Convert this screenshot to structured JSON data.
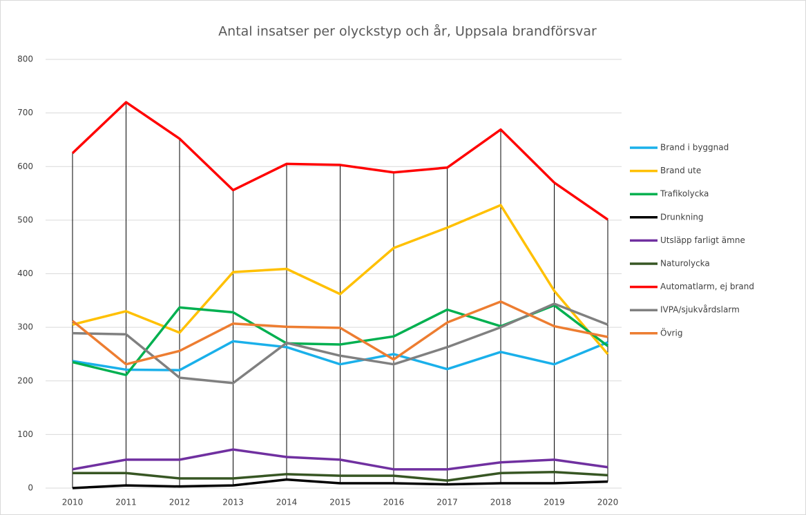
{
  "chart_data": {
    "type": "line",
    "title": "Antal insatser per olyckstyp och år, Uppsala brandförsvar",
    "categories": [
      "2010",
      "2011",
      "2012",
      "2013",
      "2014",
      "2015",
      "2016",
      "2017",
      "2018",
      "2019",
      "2020"
    ],
    "ylim": [
      0,
      800
    ],
    "yticks": [
      0,
      100,
      200,
      300,
      400,
      500,
      600,
      700,
      800
    ],
    "grid": true,
    "legend": "right",
    "series": [
      {
        "name": "Brand i byggnad",
        "color": "#1ab0ea",
        "values": [
          237,
          221,
          220,
          274,
          263,
          231,
          250,
          222,
          254,
          231,
          272
        ]
      },
      {
        "name": "Brand ute",
        "color": "#ffc000",
        "values": [
          305,
          330,
          290,
          403,
          409,
          362,
          448,
          486,
          528,
          368,
          250
        ]
      },
      {
        "name": "Trafikolycka",
        "color": "#00b050",
        "values": [
          235,
          211,
          337,
          328,
          270,
          268,
          283,
          333,
          302,
          341,
          265
        ]
      },
      {
        "name": "Drunkning",
        "color": "#000000",
        "values": [
          0,
          5,
          3,
          5,
          16,
          9,
          9,
          7,
          9,
          9,
          12
        ]
      },
      {
        "name": "Utsläpp farligt ämne",
        "color": "#7030a0",
        "values": [
          35,
          53,
          53,
          72,
          58,
          53,
          35,
          35,
          48,
          53,
          39
        ]
      },
      {
        "name": "Naturolycka",
        "color": "#375623",
        "values": [
          28,
          28,
          18,
          18,
          26,
          23,
          23,
          14,
          28,
          30,
          24
        ]
      },
      {
        "name": "Automatlarm, ej brand",
        "color": "#ff0000",
        "values": [
          625,
          720,
          652,
          556,
          605,
          603,
          589,
          598,
          669,
          570,
          501
        ]
      },
      {
        "name": "IVPA/sjukvårdslarm",
        "color": "#808080",
        "values": [
          289,
          287,
          206,
          196,
          271,
          247,
          231,
          263,
          300,
          344,
          305
        ]
      },
      {
        "name": "Övrig",
        "color": "#ed7d31",
        "values": [
          312,
          231,
          256,
          307,
          301,
          299,
          240,
          309,
          348,
          302,
          282
        ]
      }
    ]
  }
}
